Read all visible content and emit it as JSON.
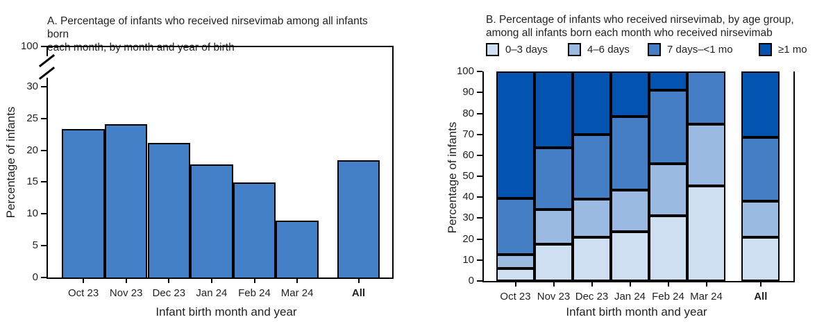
{
  "figure": {
    "x_axis_title": "Infant birth month and year",
    "y_axis_title": "Percentage of infants"
  },
  "chart_data": [
    {
      "id": "A",
      "type": "bar",
      "title": "A. Percentage of infants who received nirsevimab among all infants born each month, by month and year of birth",
      "title_lines": [
        "A. Percentage of infants who received nirsevimab among all infants born",
        "each month, by month and year of birth"
      ],
      "categories": [
        "Oct 23",
        "Nov 23",
        "Dec 23",
        "Jan 24",
        "Feb 24",
        "Mar 24",
        "All"
      ],
      "values": [
        23.4,
        24.1,
        21.2,
        17.8,
        15.0,
        8.9,
        18.4
      ],
      "xlabel": "Infant birth month and year",
      "ylabel": "Percentage of infants",
      "yticks_lower": [
        0,
        5,
        10,
        15,
        20,
        25,
        30
      ],
      "ytick_top": 100,
      "axis_break": true,
      "ylim_lower": [
        0,
        30
      ],
      "bar_color": "#4480c7",
      "grid": false
    },
    {
      "id": "B",
      "type": "stacked-bar",
      "title": "B. Percentage of infants who received nirsevimab, by age group, among all infants born each month who received nirsevimab",
      "title_lines": [
        "B. Percentage of infants who received nirsevimab, by age group,",
        "among all infants born each month who received nirsevimab"
      ],
      "categories": [
        "Oct 23",
        "Nov 23",
        "Dec 23",
        "Jan 24",
        "Feb 24",
        "Mar 24",
        "All"
      ],
      "series": [
        {
          "name": "0–3 days",
          "color": "#cfdff2",
          "values": [
            6.0,
            17.7,
            21.0,
            23.5,
            31.0,
            45.5,
            21.0
          ]
        },
        {
          "name": "4–6 days",
          "color": "#9abae2",
          "values": [
            6.5,
            16.3,
            18.0,
            20.0,
            25.0,
            29.5,
            17.0
          ]
        },
        {
          "name": "7 days–<1 mo",
          "color": "#447fc6",
          "values": [
            27.0,
            29.5,
            31.0,
            35.0,
            35.0,
            25.0,
            30.5
          ]
        },
        {
          "name": "≥1 mo",
          "color": "#0353b1",
          "values": [
            60.5,
            36.5,
            30.0,
            21.5,
            9.0,
            0.0,
            31.5
          ]
        }
      ],
      "xlabel": "Infant birth month and year",
      "ylabel": "Percentage of infants",
      "yticks": [
        0,
        10,
        20,
        30,
        40,
        50,
        60,
        70,
        80,
        90,
        100
      ],
      "ylim": [
        0,
        100
      ],
      "legend_position": "top",
      "grid": false
    }
  ]
}
